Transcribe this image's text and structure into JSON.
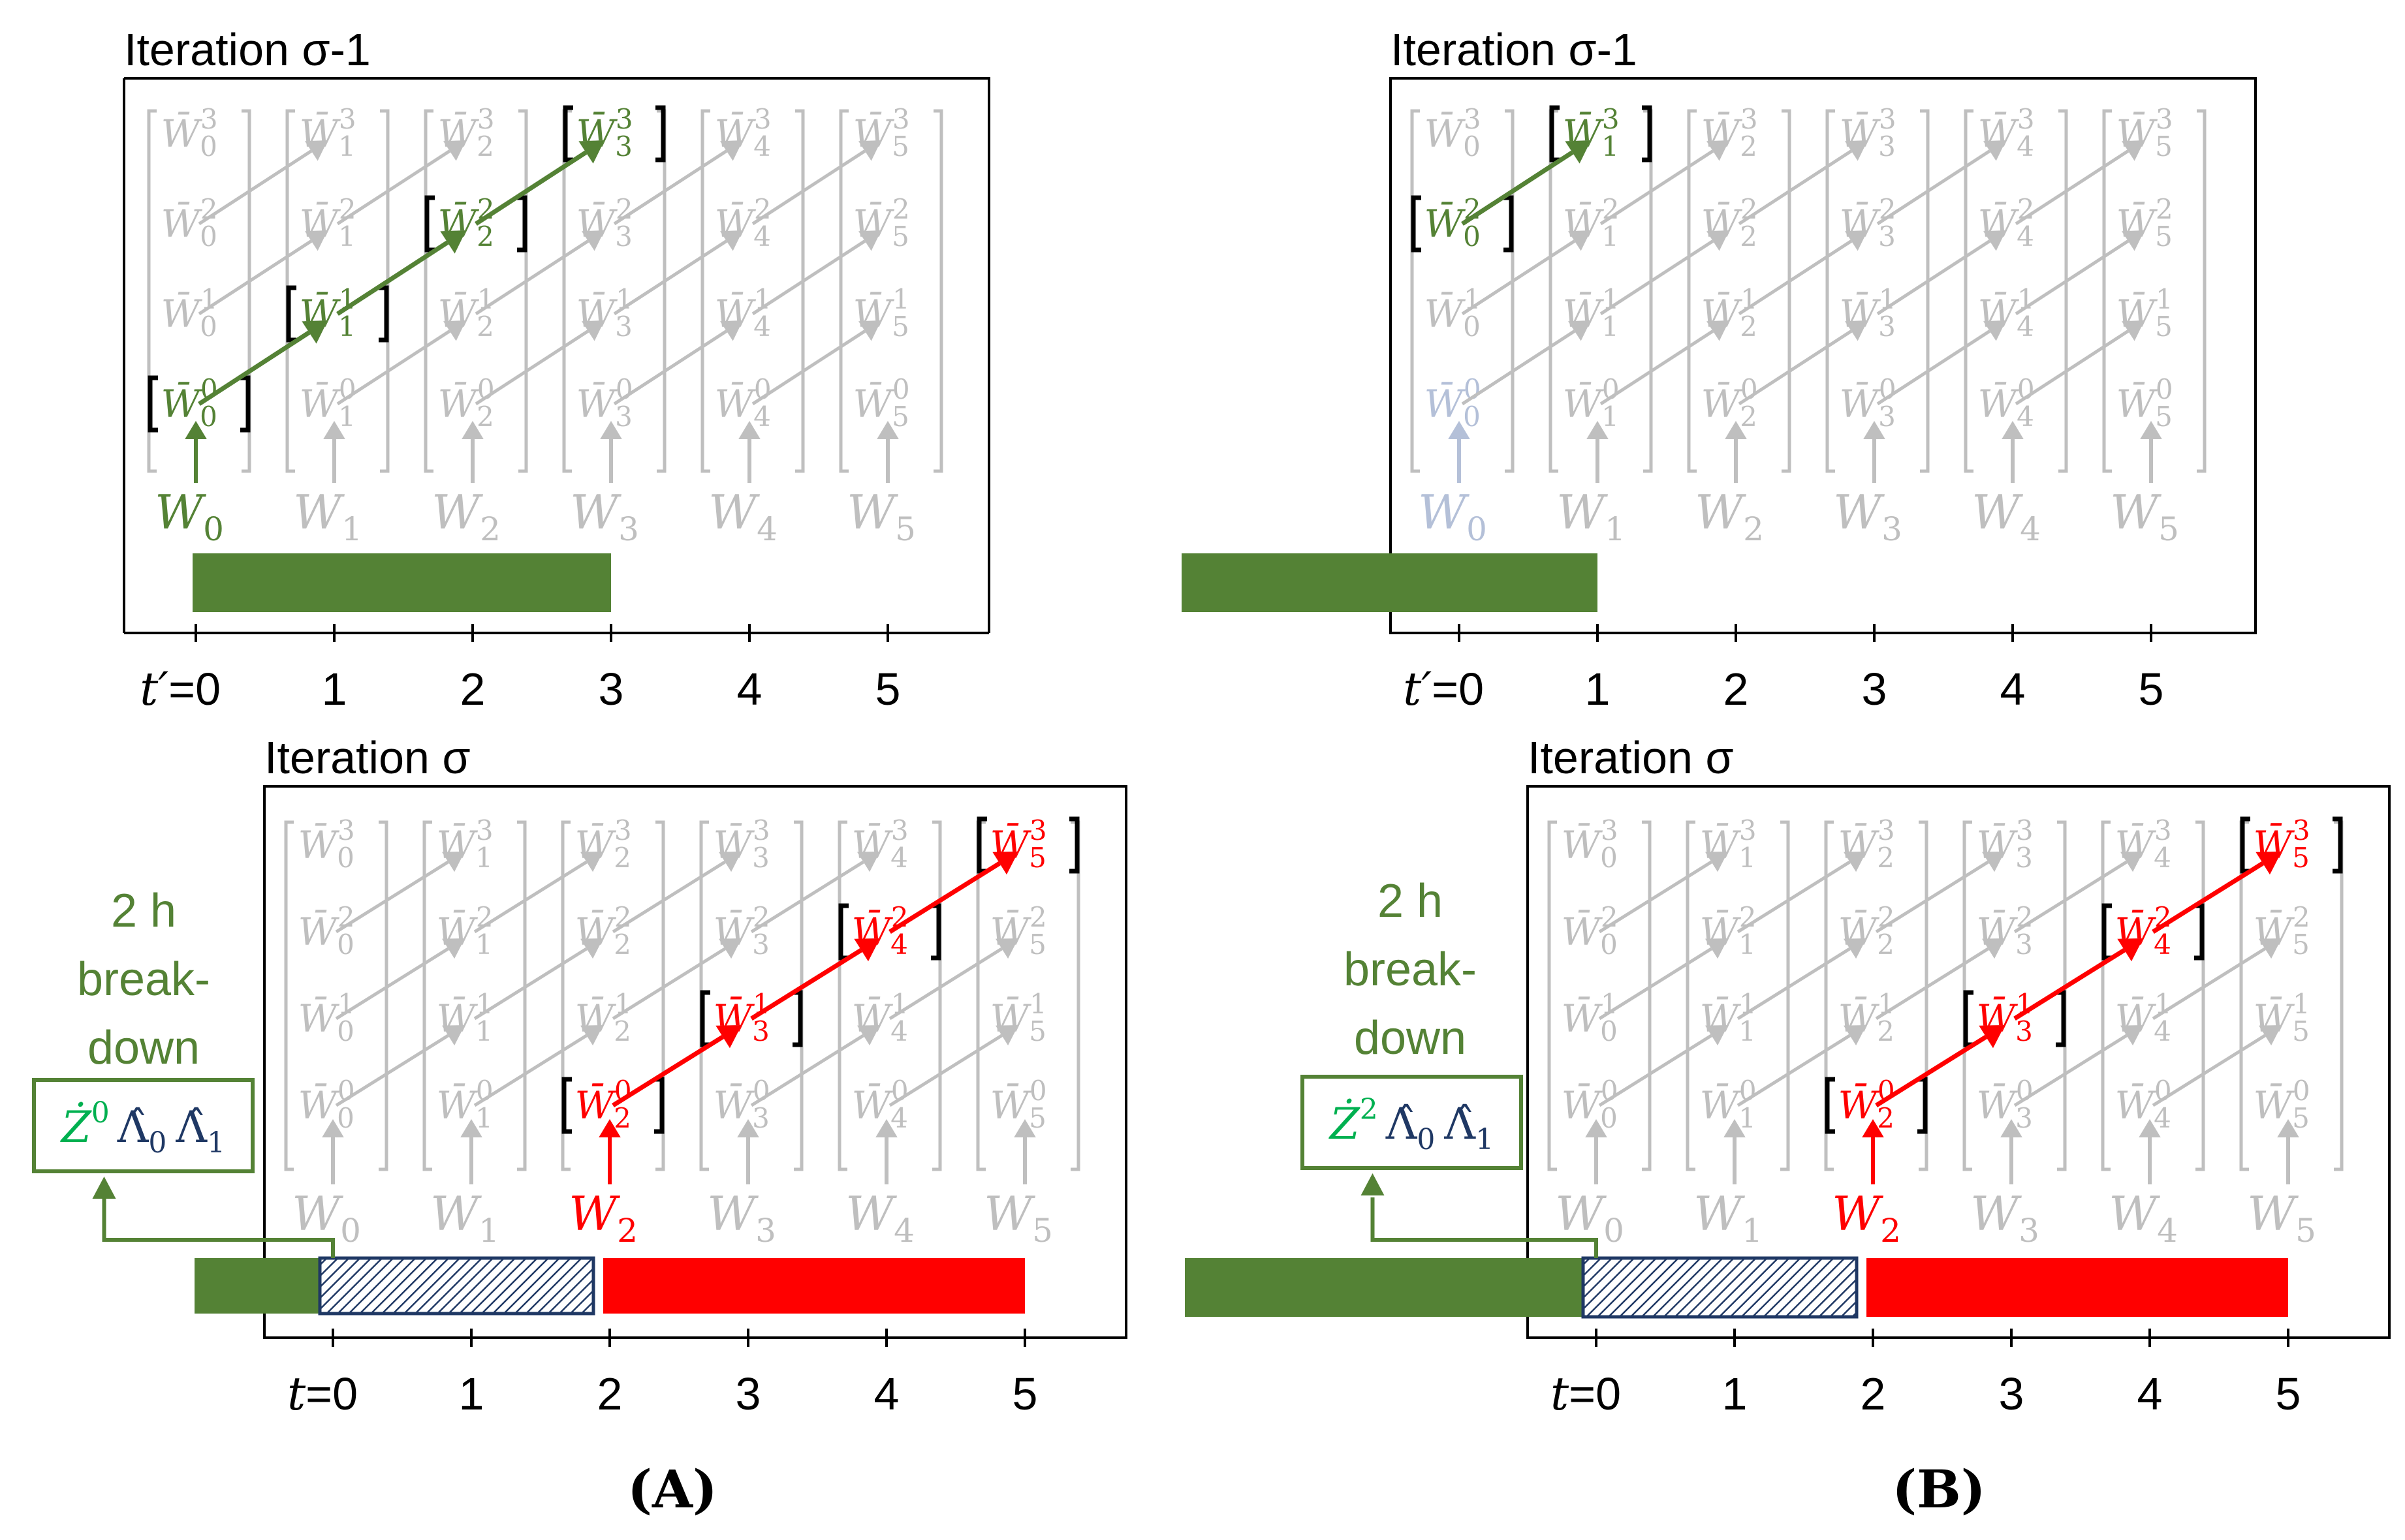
{
  "colors": {
    "green": "#548235",
    "green_text": "#00b050",
    "red": "#ff0000",
    "gray": "#bfbfbf",
    "navy": "#1f3864",
    "faded_blue": "#b4c0d8",
    "black": "#000000"
  },
  "panels": [
    {
      "caption": "(A)",
      "top": {
        "title": "Iteration σ-1",
        "axis_var": "t′",
        "ticks": [
          "0",
          "1",
          "2",
          "3",
          "4",
          "5"
        ],
        "matrix_symbol": "W̄",
        "w_symbol": "W",
        "highlight_cols": [
          0,
          1,
          2,
          3
        ],
        "highlight_start_row": 0,
        "w_colored_cols": [
          0
        ],
        "w_faded_cols": [],
        "bar_end_tick": 3
      },
      "bottom": {
        "title": "Iteration σ",
        "axis_var": "t",
        "ticks": [
          "0",
          "1",
          "2",
          "3",
          "4",
          "5"
        ],
        "matrix_symbol": "W̄",
        "w_symbol": "W",
        "highlight_cols": [
          2,
          3,
          4,
          5
        ],
        "highlight_start_row": 0,
        "w_colored_cols": [
          2
        ],
        "w_faded_cols": [],
        "breakdown_lines": [
          "2 h",
          "break-",
          "down"
        ],
        "box_z": "Ż",
        "box_z_sup": "0",
        "box_lambda": "Λ̂",
        "box_sub_a": "0",
        "box_sub_b": "1"
      }
    },
    {
      "caption": "(B)",
      "top": {
        "title": "Iteration σ-1",
        "axis_var": "t′",
        "ticks": [
          "0",
          "1",
          "2",
          "3",
          "4",
          "5"
        ],
        "matrix_symbol": "W̄",
        "w_symbol": "W",
        "highlight_cols": [
          0,
          1
        ],
        "highlight_start_row": 2,
        "w_colored_cols": [],
        "w_faded_cols": [
          0
        ],
        "bar_end_tick": 1
      },
      "bottom": {
        "title": "Iteration σ",
        "axis_var": "t",
        "ticks": [
          "0",
          "1",
          "2",
          "3",
          "4",
          "5"
        ],
        "matrix_symbol": "W̄",
        "w_symbol": "W",
        "highlight_cols": [
          2,
          3,
          4,
          5
        ],
        "highlight_start_row": 0,
        "w_colored_cols": [
          2
        ],
        "w_faded_cols": [],
        "breakdown_lines": [
          "2 h",
          "break-",
          "down"
        ],
        "box_z": "Ż",
        "box_z_sup": "2",
        "box_lambda": "Λ̂",
        "box_sub_a": "0",
        "box_sub_b": "1"
      }
    }
  ]
}
